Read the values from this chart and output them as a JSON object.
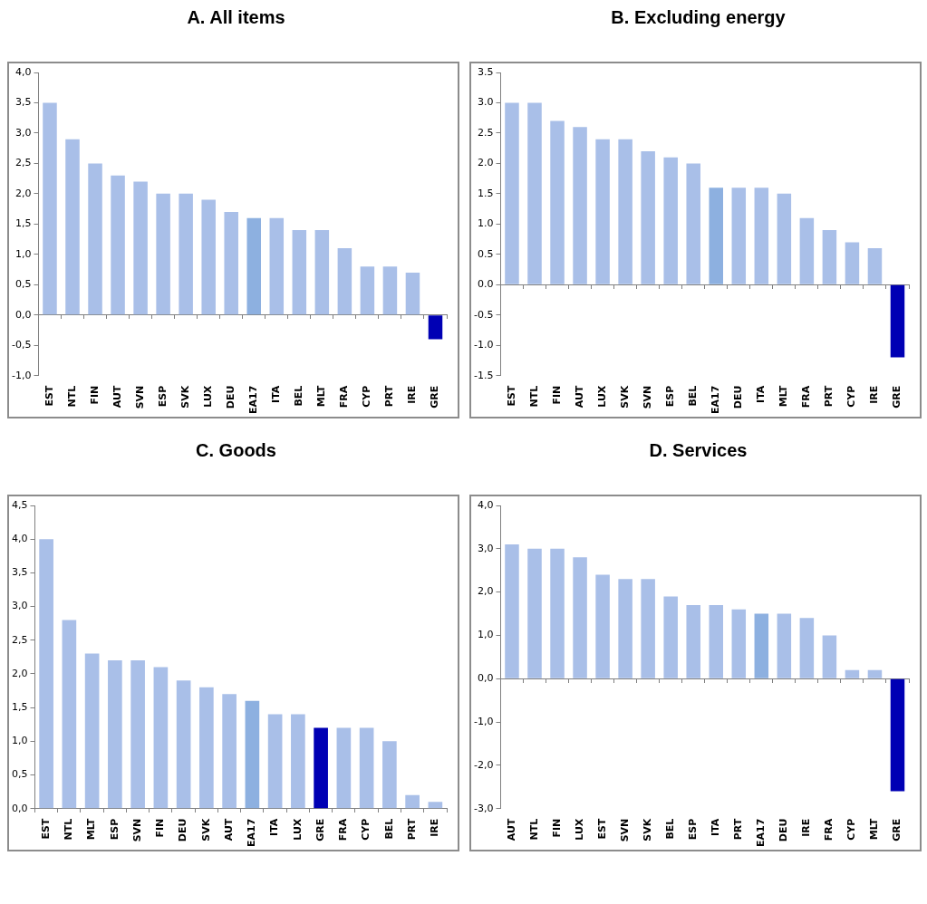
{
  "chart_data": [
    {
      "type": "bar",
      "title": "A.  All items",
      "categories": [
        "EST",
        "NTL",
        "FIN",
        "AUT",
        "SVN",
        "ESP",
        "SVK",
        "LUX",
        "DEU",
        "EA17",
        "ITA",
        "BEL",
        "MLT",
        "FRA",
        "CYP",
        "PRT",
        "IRE",
        "GRE"
      ],
      "values": [
        3.5,
        2.9,
        2.5,
        2.3,
        2.2,
        2.0,
        2.0,
        1.9,
        1.7,
        1.6,
        1.6,
        1.4,
        1.4,
        1.1,
        0.8,
        0.8,
        0.7,
        -0.4
      ],
      "colors": [
        "#a9bfe8",
        "#a9bfe8",
        "#a9bfe8",
        "#a9bfe8",
        "#a9bfe8",
        "#a9bfe8",
        "#a9bfe8",
        "#a9bfe8",
        "#a9bfe8",
        "#8db0e0",
        "#a9bfe8",
        "#a9bfe8",
        "#a9bfe8",
        "#a9bfe8",
        "#a9bfe8",
        "#a9bfe8",
        "#a9bfe8",
        "#0000b4"
      ],
      "ylim": [
        -1,
        4
      ],
      "yticks": [
        {
          "value": -1,
          "label": "-1,0"
        },
        {
          "value": -0.5,
          "label": "-0,5"
        },
        {
          "value": 0,
          "label": "0,0"
        },
        {
          "value": 0.5,
          "label": "0,5"
        },
        {
          "value": 1,
          "label": "1,0"
        },
        {
          "value": 1.5,
          "label": "1,5"
        },
        {
          "value": 2,
          "label": "2,0"
        },
        {
          "value": 2.5,
          "label": "2,5"
        },
        {
          "value": 3,
          "label": "3,0"
        },
        {
          "value": 3.5,
          "label": "3,5"
        },
        {
          "value": 4,
          "label": "4,0"
        }
      ],
      "legend": false
    },
    {
      "type": "bar",
      "title": "B. Excluding energy",
      "categories": [
        "EST",
        "NTL",
        "FIN",
        "AUT",
        "LUX",
        "SVK",
        "SVN",
        "ESP",
        "BEL",
        "EA17",
        "DEU",
        "ITA",
        "MLT",
        "FRA",
        "PRT",
        "CYP",
        "IRE",
        "GRE"
      ],
      "values": [
        3.0,
        3.0,
        2.7,
        2.6,
        2.4,
        2.4,
        2.2,
        2.1,
        2.0,
        1.6,
        1.6,
        1.6,
        1.5,
        1.1,
        0.9,
        0.7,
        0.6,
        -1.2
      ],
      "colors": [
        "#a9bfe8",
        "#a9bfe8",
        "#a9bfe8",
        "#a9bfe8",
        "#a9bfe8",
        "#a9bfe8",
        "#a9bfe8",
        "#a9bfe8",
        "#a9bfe8",
        "#8db0e0",
        "#a9bfe8",
        "#a9bfe8",
        "#a9bfe8",
        "#a9bfe8",
        "#a9bfe8",
        "#a9bfe8",
        "#a9bfe8",
        "#0000b4"
      ],
      "ylim": [
        -1.5,
        3.5
      ],
      "yticks": [
        {
          "value": -1.5,
          "label": "-1.5"
        },
        {
          "value": -1,
          "label": "-1.0"
        },
        {
          "value": -0.5,
          "label": "-0.5"
        },
        {
          "value": 0,
          "label": "0.0"
        },
        {
          "value": 0.5,
          "label": "0.5"
        },
        {
          "value": 1,
          "label": "1.0"
        },
        {
          "value": 1.5,
          "label": "1.5"
        },
        {
          "value": 2,
          "label": "2.0"
        },
        {
          "value": 2.5,
          "label": "2.5"
        },
        {
          "value": 3,
          "label": "3.0"
        },
        {
          "value": 3.5,
          "label": "3.5"
        }
      ],
      "legend": false
    },
    {
      "type": "bar",
      "title": "C. Goods",
      "categories": [
        "EST",
        "NTL",
        "MLT",
        "ESP",
        "SVN",
        "FIN",
        "DEU",
        "SVK",
        "AUT",
        "EA17",
        "ITA",
        "LUX",
        "GRE",
        "FRA",
        "CYP",
        "BEL",
        "PRT",
        "IRE"
      ],
      "values": [
        4.0,
        2.8,
        2.3,
        2.2,
        2.2,
        2.1,
        1.9,
        1.8,
        1.7,
        1.6,
        1.4,
        1.4,
        1.2,
        1.2,
        1.2,
        1.0,
        0.2,
        0.1
      ],
      "colors": [
        "#a9bfe8",
        "#a9bfe8",
        "#a9bfe8",
        "#a9bfe8",
        "#a9bfe8",
        "#a9bfe8",
        "#a9bfe8",
        "#a9bfe8",
        "#a9bfe8",
        "#8db0e0",
        "#a9bfe8",
        "#a9bfe8",
        "#0000b4",
        "#a9bfe8",
        "#a9bfe8",
        "#a9bfe8",
        "#a9bfe8",
        "#a9bfe8"
      ],
      "ylim": [
        0,
        4.5
      ],
      "yticks": [
        {
          "value": 0,
          "label": "0,0"
        },
        {
          "value": 0.5,
          "label": "0,5"
        },
        {
          "value": 1,
          "label": "1,0"
        },
        {
          "value": 1.5,
          "label": "1,5"
        },
        {
          "value": 2,
          "label": "2,0"
        },
        {
          "value": 2.5,
          "label": "2,5"
        },
        {
          "value": 3,
          "label": "3,0"
        },
        {
          "value": 3.5,
          "label": "3,5"
        },
        {
          "value": 4,
          "label": "4,0"
        },
        {
          "value": 4.5,
          "label": "4,5"
        }
      ],
      "legend": false
    },
    {
      "type": "bar",
      "title": "D. Services",
      "categories": [
        "AUT",
        "NTL",
        "FIN",
        "LUX",
        "EST",
        "SVN",
        "SVK",
        "BEL",
        "ESP",
        "ITA",
        "PRT",
        "EA17",
        "DEU",
        "IRE",
        "FRA",
        "CYP",
        "MLT",
        "GRE"
      ],
      "values": [
        3.1,
        3.0,
        3.0,
        2.8,
        2.4,
        2.3,
        2.3,
        1.9,
        1.7,
        1.7,
        1.6,
        1.5,
        1.5,
        1.4,
        1.0,
        0.2,
        0.2,
        -2.6
      ],
      "colors": [
        "#a9bfe8",
        "#a9bfe8",
        "#a9bfe8",
        "#a9bfe8",
        "#a9bfe8",
        "#a9bfe8",
        "#a9bfe8",
        "#a9bfe8",
        "#a9bfe8",
        "#a9bfe8",
        "#a9bfe8",
        "#8db0e0",
        "#a9bfe8",
        "#a9bfe8",
        "#a9bfe8",
        "#a9bfe8",
        "#a9bfe8",
        "#0000b4"
      ],
      "ylim": [
        -3,
        4
      ],
      "yticks": [
        {
          "value": -3,
          "label": "-3,0"
        },
        {
          "value": -2,
          "label": "-2,0"
        },
        {
          "value": -1,
          "label": "-1,0"
        },
        {
          "value": 0,
          "label": "0,0"
        },
        {
          "value": 1,
          "label": "1,0"
        },
        {
          "value": 2,
          "label": "2,0"
        },
        {
          "value": 3,
          "label": "3,0"
        },
        {
          "value": 4,
          "label": "4,0"
        }
      ],
      "legend": false
    }
  ]
}
